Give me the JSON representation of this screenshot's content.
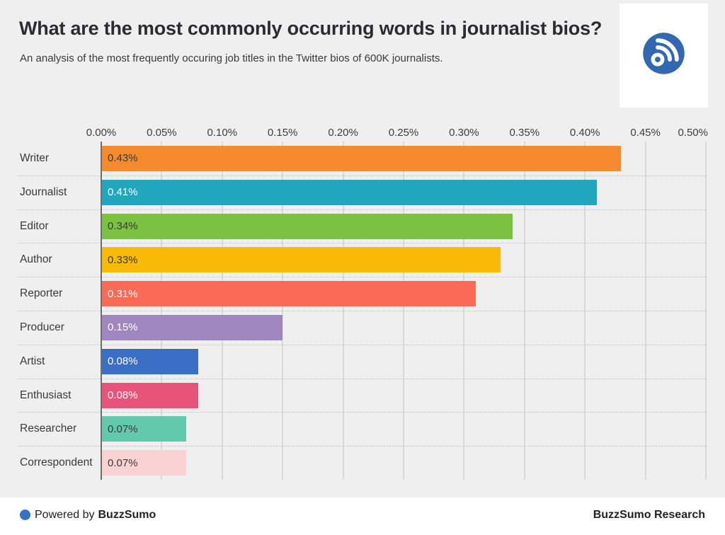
{
  "header": {
    "title": "What are the most commonly occurring words in journalist bios?",
    "subtitle": "An analysis of the most frequently occuring job titles in the Twitter bios of 600K journalists.",
    "logo_color": "#3268b1"
  },
  "chart_data": {
    "type": "bar",
    "orientation": "horizontal",
    "title": "What are the most commonly occurring words in journalist bios?",
    "xlabel": "",
    "ylabel": "",
    "xlim": [
      0,
      0.5
    ],
    "grid": true,
    "legend": false,
    "x_ticks": [
      "0.00%",
      "0.05%",
      "0.10%",
      "0.15%",
      "0.20%",
      "0.25%",
      "0.30%",
      "0.35%",
      "0.40%",
      "0.45%",
      "0.50%"
    ],
    "categories": [
      "Writer",
      "Journalist",
      "Editor",
      "Author",
      "Reporter",
      "Producer",
      "Artist",
      "Enthusiast",
      "Researcher",
      "Correspondent"
    ],
    "values": [
      0.43,
      0.41,
      0.34,
      0.33,
      0.31,
      0.15,
      0.08,
      0.08,
      0.07,
      0.07
    ],
    "value_labels": [
      "0.43%",
      "0.41%",
      "0.34%",
      "0.33%",
      "0.31%",
      "0.15%",
      "0.08%",
      "0.08%",
      "0.07%",
      "0.07%"
    ],
    "bar_colors": [
      "#f68b2e",
      "#21a8be",
      "#7cc142",
      "#fbba05",
      "#fa6a55",
      "#9f86be",
      "#3b6ec5",
      "#e8537a",
      "#62c9ac",
      "#fbd2d4"
    ],
    "value_label_colors": [
      "#3a3a3a",
      "#ffffff",
      "#3a3a3a",
      "#3a3a3a",
      "#ffffff",
      "#ffffff",
      "#ffffff",
      "#ffffff",
      "#3a3a3a",
      "#3a3a3a"
    ],
    "background_color": "#f0efef"
  },
  "footer": {
    "powered_by_prefix": "Powered by",
    "powered_by_brand": "BuzzSumo",
    "research_credit": "BuzzSumo Research",
    "dot_color": "#3472c7"
  }
}
